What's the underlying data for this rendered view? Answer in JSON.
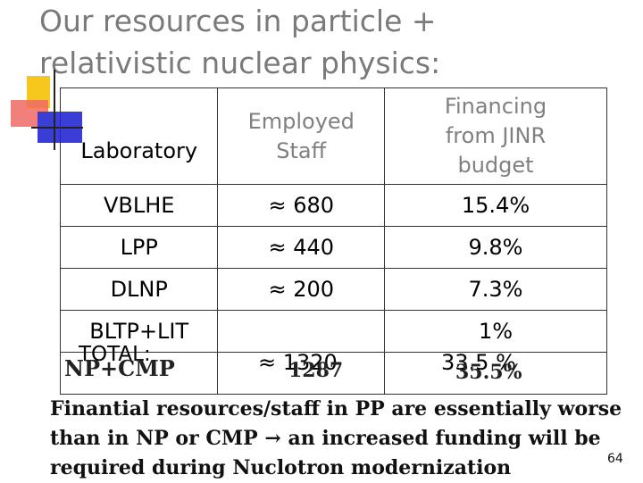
{
  "title": {
    "line1": "Our resources in particle +",
    "line2": "relativistic nuclear physics:"
  },
  "table": {
    "headers": {
      "laboratory": "Laboratory",
      "staff": "Employed Staff",
      "financing": "Financing from JINR budget"
    },
    "rows": [
      {
        "lab": "VBLHE",
        "staff": "≈ 680",
        "financing": "15.4%"
      },
      {
        "lab": "LPP",
        "staff": "≈ 440",
        "financing": "9.8%"
      },
      {
        "lab": "DLNP",
        "staff": "≈ 200",
        "financing": "7.3%"
      },
      {
        "lab": "BLTP+LIT",
        "staff": "",
        "financing": "1%"
      }
    ],
    "total": {
      "lab": "TOTAL:",
      "staff": "≈ 1320",
      "financing": "33.5 %"
    },
    "overlay": {
      "lab": "NP+CMP",
      "staff": "1287",
      "financing": "35.5%"
    }
  },
  "note": {
    "line1": "Finantial resources/staff  in PP are essentially worse",
    "line2": "than in NP or CMP → an increased funding will be",
    "line3": "required during Nuclotron modernization"
  },
  "page_number": "64"
}
